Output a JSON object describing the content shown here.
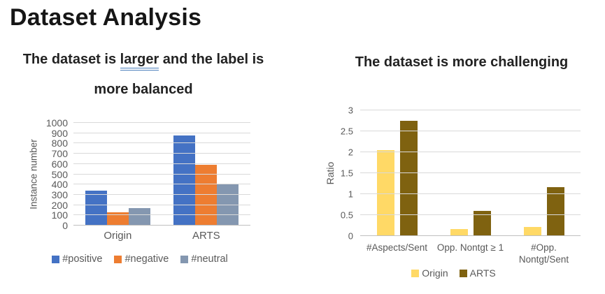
{
  "slide": {
    "title": "Dataset Analysis"
  },
  "left_panel": {
    "subtitle_pre": "The dataset is ",
    "subtitle_underlined": "larger",
    "subtitle_post": " and the label is",
    "subtitle_line2": "more balanced"
  },
  "right_panel": {
    "subtitle": "The dataset is more challenging"
  },
  "colors": {
    "positive_blue": "#4472C4",
    "negative_orange": "#ED7D31",
    "neutral_gray": "#8497B0",
    "origin_yellow": "#FFD966",
    "arts_olive": "#7F6210",
    "underline_blue": "#4A7EBB",
    "axis_text": "#595959",
    "gridline": "#D9D9D9"
  },
  "chart_data": [
    {
      "type": "bar",
      "title": "",
      "xlabel": "",
      "ylabel": "Instance number",
      "categories": [
        "Origin",
        "ARTS"
      ],
      "series": [
        {
          "name": "#positive",
          "color": "#4472C4",
          "values": [
            340,
            880
          ]
        },
        {
          "name": "#negative",
          "color": "#ED7D31",
          "values": [
            130,
            590
          ]
        },
        {
          "name": "#neutral",
          "color": "#8497B0",
          "values": [
            170,
            405
          ]
        }
      ],
      "ylim": [
        0,
        1000
      ],
      "yticks": [
        0,
        100,
        200,
        300,
        400,
        500,
        600,
        700,
        800,
        900,
        1000
      ],
      "grid": true,
      "legend_position": "bottom"
    },
    {
      "type": "bar",
      "title": "",
      "xlabel": "",
      "ylabel": "Ratio",
      "categories": [
        "#Aspects/Sent",
        "Opp. Nontgt ≥ 1",
        "#Opp. Nontgt/Sent"
      ],
      "series": [
        {
          "name": "Origin",
          "color": "#FFD966",
          "values": [
            2.05,
            0.16,
            0.22
          ]
        },
        {
          "name": "ARTS",
          "color": "#7F6210",
          "values": [
            2.75,
            0.6,
            1.17
          ]
        }
      ],
      "ylim": [
        0,
        3
      ],
      "yticks": [
        0,
        0.5,
        1,
        1.5,
        2,
        2.5,
        3
      ],
      "grid": true,
      "legend_position": "bottom"
    }
  ]
}
